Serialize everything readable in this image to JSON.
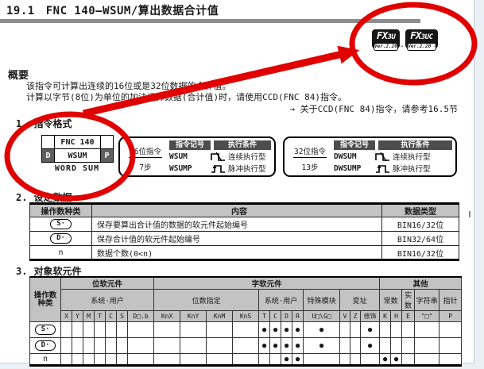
{
  "page": {
    "title_no": "19.1",
    "title_text": "FNC 140—WSUM/算出数据合计值"
  },
  "badges": {
    "items": [
      {
        "family": "FX",
        "model": "3U",
        "version": "Ver.2.20 ⇒"
      },
      {
        "family": "FX",
        "model": "3UC",
        "version": "Ver.2.20 ⇒"
      }
    ]
  },
  "overview": {
    "heading": "概要",
    "line1": "该指令可计算出连续的16位或是32位数据的合计值。",
    "line2": "计算以字节(8位)为单位的加法运算数据(合计值)时，请使用CCD(FNC 84)指令。",
    "reference": "→ 关于CCD(FNC 84)指令，请参考16.5节"
  },
  "sections": {
    "s1": {
      "num": "1.",
      "label": "指令格式"
    },
    "s2": {
      "num": "2.",
      "label": "设定数据"
    },
    "s3": {
      "num": "3.",
      "label": "对象软元件"
    }
  },
  "instruction_symbol": {
    "fnc": "FNC 140",
    "d": "D",
    "mnemonic": "WSUM",
    "p": "P",
    "caption": "WORD SUM"
  },
  "instruction_boxes": [
    {
      "bits": "16位指令",
      "steps": "7步",
      "symbol_header": "指令记号",
      "condition_header": "执行条件",
      "rows": [
        {
          "symbol": "WSUM",
          "condition": "连续执行型"
        },
        {
          "symbol": "WSUMP",
          "condition": "脉冲执行型"
        }
      ]
    },
    {
      "bits": "32位指令",
      "steps": "13步",
      "symbol_header": "指令记号",
      "condition_header": "执行条件",
      "rows": [
        {
          "symbol": "DWSUM",
          "condition": "连续执行型"
        },
        {
          "symbol": "DWSUMP",
          "condition": "脉冲执行型"
        }
      ]
    }
  ],
  "setting_table": {
    "headers": [
      "操作数种类",
      "内容",
      "数据类型"
    ],
    "rows": [
      {
        "operand": "S·",
        "oval": true,
        "content": "保存要算出合计值的数据的软元件起始编号",
        "type": "BIN16/32位"
      },
      {
        "operand": "D·",
        "oval": true,
        "content": "保存合计值的软元件起始编号",
        "type": "BIN32/64位"
      },
      {
        "operand": "n",
        "oval": false,
        "content": "数据个数(0<n)",
        "type": "BIN16/32位"
      }
    ]
  },
  "device_table": {
    "corner_lines": [
      "操作数",
      "种类"
    ],
    "groups": [
      {
        "label": "位软元件",
        "span": 7
      },
      {
        "label": "字软元件",
        "span": 12
      },
      {
        "label": "其他",
        "span": 5
      }
    ],
    "subgroups": [
      {
        "label": "系统·用户",
        "span": 7
      },
      {
        "label": "位数指定",
        "span": 4
      },
      {
        "label": "系统·用户",
        "span": 4
      },
      {
        "label": "特殊模块",
        "span": 1
      },
      {
        "label": "变址",
        "span": 3
      },
      {
        "label": "常数",
        "span": 2
      },
      {
        "label": "实数",
        "span": 1
      },
      {
        "label": "字符串",
        "span": 1
      },
      {
        "label": "指针",
        "span": 1
      }
    ],
    "columns": [
      "X",
      "Y",
      "M",
      "T",
      "C",
      "S",
      "D□.b",
      "KnX",
      "KnY",
      "KnM",
      "KnS",
      "T",
      "C",
      "D",
      "R",
      "U□\\G□",
      "V",
      "Z",
      "修饰",
      "K",
      "H",
      "E",
      "\"□\"",
      "P"
    ],
    "dot_char": "●",
    "rows": [
      {
        "operand": "S·",
        "oval": true,
        "dots": [
          11,
          12,
          13,
          14,
          15,
          18
        ]
      },
      {
        "operand": "D·",
        "oval": true,
        "dots": [
          11,
          12,
          13,
          14,
          15,
          18
        ]
      },
      {
        "operand": "n",
        "oval": false,
        "dots": [
          13,
          14,
          19,
          20
        ]
      }
    ]
  },
  "annotation": {
    "color": "#e10000"
  }
}
